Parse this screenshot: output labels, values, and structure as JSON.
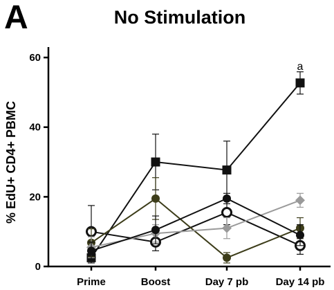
{
  "panel_letter": "A",
  "chart_data": {
    "type": "line",
    "title": "No Stimulation",
    "xlabel": "",
    "ylabel": "% EdU+ CD4+ PBMC",
    "categories": [
      "Prime",
      "Boost",
      "Day 7 pb",
      "Day 14 pb"
    ],
    "ylim": [
      0,
      63
    ],
    "yticks": [
      0,
      20,
      40,
      60
    ],
    "grid": false,
    "series": [
      {
        "marker": "filled-square",
        "color": "#111111",
        "values": [
          2.5,
          30,
          27.7,
          52.7
        ],
        "error": [
          1.5,
          8,
          8.3,
          3.2
        ]
      },
      {
        "marker": "open-circle",
        "color": "#111111",
        "values": [
          10,
          7,
          15.5,
          6
        ],
        "error": [
          7.5,
          2.5,
          3.5,
          2.5
        ]
      },
      {
        "marker": "filled-circle",
        "color": "#3d3d1a",
        "values": [
          6.8,
          19.5,
          2.5,
          11
        ],
        "error": [
          4,
          6,
          1.5,
          3
        ]
      },
      {
        "marker": "filled-diamond",
        "color": "#9a9a9a",
        "values": [
          5.5,
          9.5,
          11,
          19
        ],
        "error": [
          3,
          2.5,
          3,
          2
        ]
      },
      {
        "marker": "filled-circle",
        "color": "#111111",
        "values": [
          4.5,
          10.5,
          19.5,
          9
        ],
        "error": [
          2.5,
          4,
          1.5,
          3
        ]
      }
    ],
    "annotations": [
      {
        "text": "a",
        "category": "Day 14 pb"
      }
    ],
    "colors": {
      "axis": "#000000",
      "background": "#ffffff"
    }
  }
}
